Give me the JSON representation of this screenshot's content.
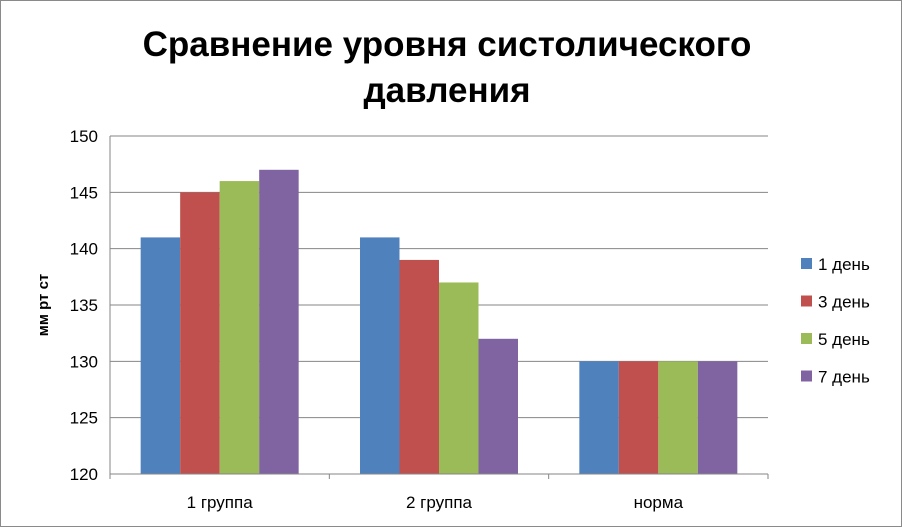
{
  "chart_data": {
    "type": "bar",
    "title_lines": [
      "Сравнение уровня систолического",
      "давления"
    ],
    "ylabel": "мм рт ст",
    "xlabel": "",
    "categories": [
      "1 группа",
      "2 группа",
      "норма"
    ],
    "series": [
      {
        "name": " 1 день",
        "values": [
          141,
          141,
          130
        ],
        "color": "#4f81bd"
      },
      {
        "name": "3 день",
        "values": [
          145,
          139,
          130
        ],
        "color": "#c0504d"
      },
      {
        "name": "5 день",
        "values": [
          146,
          137,
          130
        ],
        "color": "#9bbb59"
      },
      {
        "name": "7 день",
        "values": [
          147,
          132,
          130
        ],
        "color": "#8064a2"
      }
    ],
    "ylim": [
      120,
      150
    ],
    "ytick_step": 5,
    "grid": true,
    "legend_position": "right"
  }
}
